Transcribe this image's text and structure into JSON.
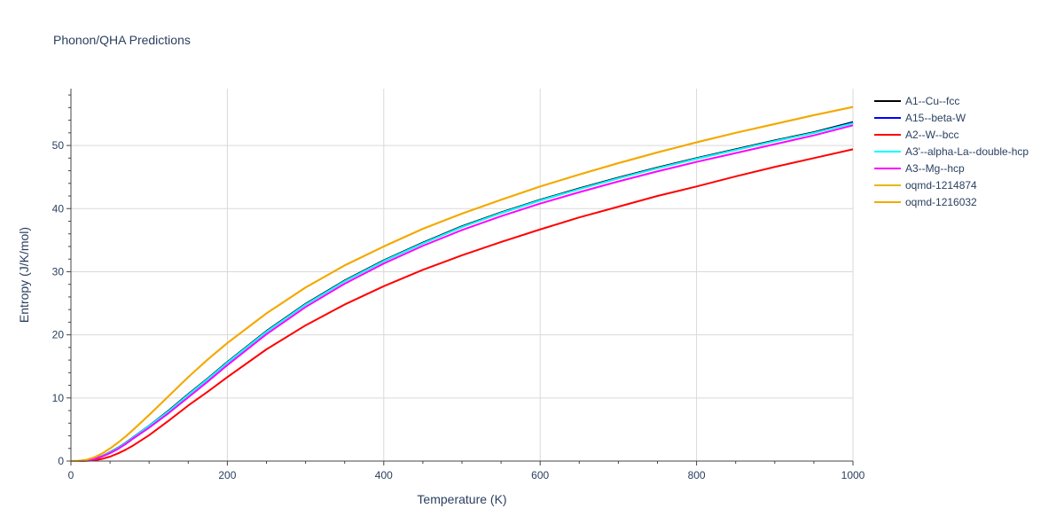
{
  "chart_data": {
    "type": "line",
    "title": "Phonon/QHA Predictions",
    "xlabel": "Temperature (K)",
    "ylabel": "Entropy (J/K/mol)",
    "xlim": [
      0,
      1000
    ],
    "ylim": [
      0,
      59
    ],
    "xticks": [
      0,
      200,
      400,
      600,
      800,
      1000
    ],
    "yticks": [
      0,
      10,
      20,
      30,
      40,
      50
    ],
    "grid": true,
    "legend_position": "right",
    "series": [
      {
        "name": "A1--Cu--fcc",
        "color": "#000000",
        "x": [
          0,
          10,
          20,
          30,
          40,
          50,
          60,
          70,
          80,
          100,
          125,
          150,
          175,
          200,
          250,
          300,
          350,
          400,
          450,
          500,
          550,
          600,
          650,
          700,
          750,
          800,
          850,
          900,
          950,
          1000
        ],
        "y": [
          0,
          0.02,
          0.1,
          0.35,
          0.8,
          1.4,
          2.1,
          2.9,
          3.8,
          5.6,
          8.0,
          10.6,
          13.1,
          15.7,
          20.6,
          24.9,
          28.6,
          31.8,
          34.6,
          37.2,
          39.4,
          41.4,
          43.2,
          44.9,
          46.5,
          48.0,
          49.4,
          50.8,
          52.1,
          53.7
        ]
      },
      {
        "name": "A15--beta-W",
        "color": "#0000ff",
        "x": [
          0,
          10,
          20,
          30,
          40,
          50,
          60,
          70,
          80,
          100,
          125,
          150,
          175,
          200,
          250,
          300,
          350,
          400,
          450,
          500,
          550,
          600,
          650,
          700,
          750,
          800,
          850,
          900,
          950,
          1000
        ],
        "y": [
          0,
          0.02,
          0.1,
          0.33,
          0.78,
          1.35,
          2.05,
          2.85,
          3.75,
          5.55,
          7.9,
          10.5,
          13.0,
          15.6,
          20.5,
          24.8,
          28.5,
          31.7,
          34.5,
          37.1,
          39.3,
          41.3,
          43.1,
          44.8,
          46.4,
          47.9,
          49.3,
          50.7,
          52.0,
          53.6
        ]
      },
      {
        "name": "A2--W--bcc",
        "color": "#ff0000",
        "x": [
          0,
          10,
          20,
          30,
          40,
          50,
          60,
          70,
          80,
          100,
          125,
          150,
          175,
          200,
          250,
          300,
          350,
          400,
          450,
          500,
          550,
          600,
          650,
          700,
          750,
          800,
          850,
          900,
          950,
          1000
        ],
        "y": [
          0,
          0.0,
          0.03,
          0.12,
          0.35,
          0.7,
          1.2,
          1.8,
          2.5,
          4.1,
          6.4,
          8.8,
          11.0,
          13.3,
          17.7,
          21.5,
          24.8,
          27.7,
          30.3,
          32.6,
          34.7,
          36.7,
          38.6,
          40.3,
          42.0,
          43.5,
          45.1,
          46.6,
          48.0,
          49.4
        ]
      },
      {
        "name": "A3'--alpha-La--double-hcp",
        "color": "#00ffff",
        "x": [
          0,
          10,
          20,
          30,
          40,
          50,
          60,
          70,
          80,
          100,
          125,
          150,
          175,
          200,
          250,
          300,
          350,
          400,
          450,
          500,
          550,
          600,
          650,
          700,
          750,
          800,
          850,
          900,
          950,
          1000
        ],
        "y": [
          0,
          0.02,
          0.1,
          0.33,
          0.78,
          1.35,
          2.05,
          2.85,
          3.75,
          5.55,
          7.9,
          10.5,
          13.0,
          15.6,
          20.5,
          24.8,
          28.5,
          31.7,
          34.5,
          37.1,
          39.3,
          41.3,
          43.1,
          44.8,
          46.4,
          47.9,
          49.3,
          50.7,
          52.0,
          53.5
        ]
      },
      {
        "name": "A3--Mg--hcp",
        "color": "#ff00ff",
        "x": [
          0,
          10,
          20,
          30,
          40,
          50,
          60,
          70,
          80,
          100,
          125,
          150,
          175,
          200,
          250,
          300,
          350,
          400,
          450,
          500,
          550,
          600,
          650,
          700,
          750,
          800,
          850,
          900,
          950,
          1000
        ],
        "y": [
          0,
          0.02,
          0.09,
          0.3,
          0.72,
          1.25,
          1.9,
          2.7,
          3.6,
          5.3,
          7.6,
          10.1,
          12.6,
          15.2,
          20.1,
          24.4,
          28.1,
          31.3,
          34.1,
          36.6,
          38.8,
          40.8,
          42.6,
          44.3,
          45.9,
          47.4,
          48.8,
          50.2,
          51.6,
          53.2
        ]
      },
      {
        "name": "oqmd-1214874",
        "color": "#e6b800",
        "x": [
          0,
          10,
          20,
          30,
          40,
          50,
          60,
          70,
          80,
          100,
          125,
          150,
          175,
          200,
          250,
          300,
          350,
          400,
          450,
          500,
          550,
          600,
          650,
          700,
          750,
          800,
          850,
          900,
          950,
          1000
        ],
        "y": [
          0,
          0.04,
          0.2,
          0.6,
          1.2,
          2.0,
          2.9,
          3.9,
          5.0,
          7.3,
          10.3,
          13.3,
          16.1,
          18.7,
          23.4,
          27.5,
          31.0,
          34.0,
          36.8,
          39.2,
          41.4,
          43.5,
          45.4,
          47.2,
          48.9,
          50.5,
          52.0,
          53.4,
          54.8,
          56.1
        ]
      },
      {
        "name": "oqmd-1216032",
        "color": "#f5a800",
        "x": [
          0,
          10,
          20,
          30,
          40,
          50,
          60,
          70,
          80,
          100,
          125,
          150,
          175,
          200,
          250,
          300,
          350,
          400,
          450,
          500,
          550,
          600,
          650,
          700,
          750,
          800,
          850,
          900,
          950,
          1000
        ],
        "y": [
          0,
          0.04,
          0.2,
          0.6,
          1.2,
          2.0,
          2.9,
          3.9,
          5.0,
          7.3,
          10.3,
          13.3,
          16.1,
          18.7,
          23.4,
          27.5,
          31.0,
          34.0,
          36.8,
          39.2,
          41.4,
          43.5,
          45.4,
          47.2,
          48.9,
          50.5,
          52.0,
          53.4,
          54.8,
          56.1
        ]
      }
    ]
  }
}
